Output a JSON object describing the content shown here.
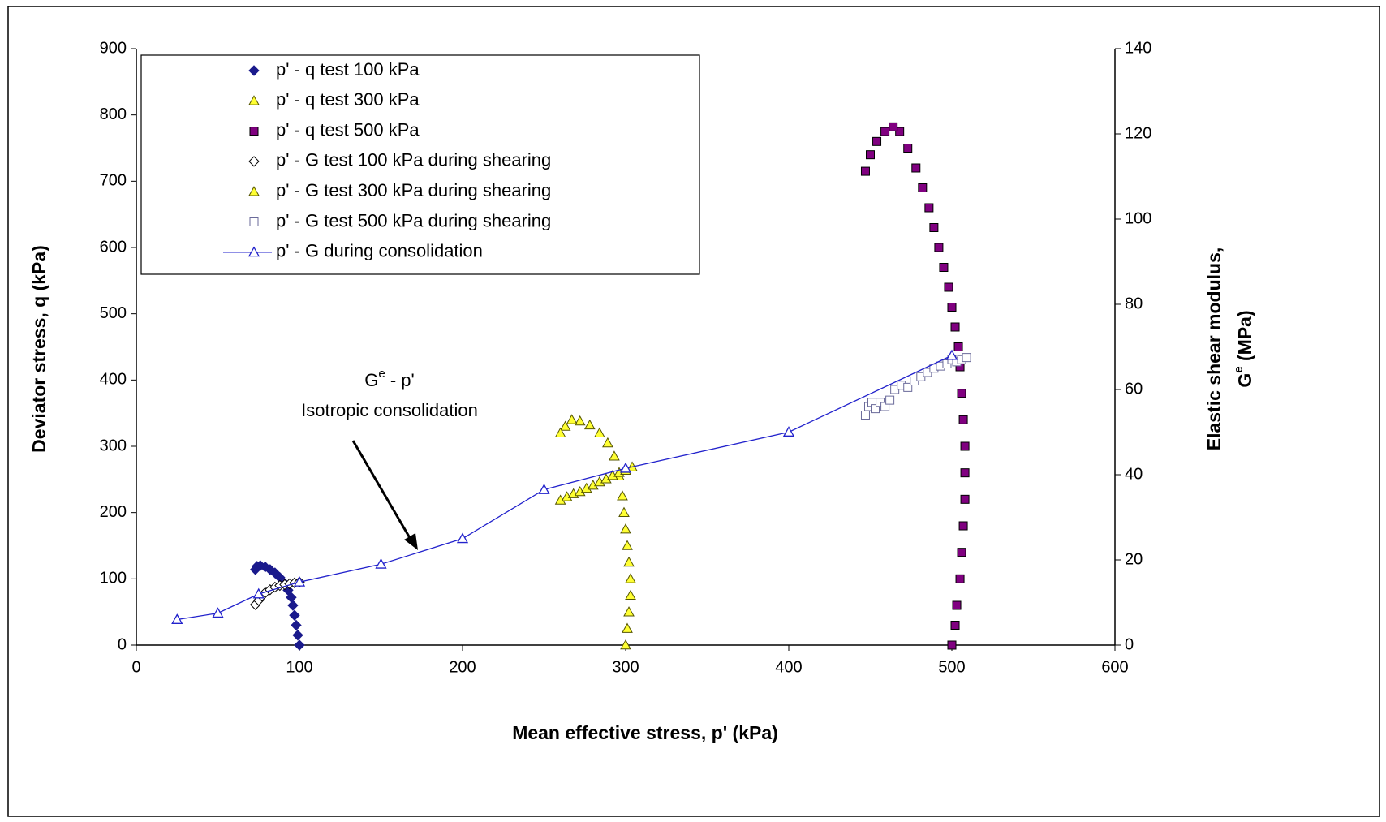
{
  "chart_data": {
    "type": "scatter",
    "x_label": "Mean effective stress, p' (kPa)",
    "y_label": "Deviator stress, q (kPa)",
    "y2_label": [
      "Elastic shear modulus,",
      [
        "G",
        "e",
        " (MPa)"
      ]
    ],
    "annotation": [
      [
        "G",
        "e",
        " - p'"
      ],
      "Isotropic consolidation"
    ],
    "xlim": [
      0,
      600
    ],
    "xticks": [
      0,
      100,
      200,
      300,
      400,
      500,
      600
    ],
    "ylim": [
      0,
      900
    ],
    "yticks": [
      0,
      100,
      200,
      300,
      400,
      500,
      600,
      700,
      800,
      900
    ],
    "y2lim": [
      0,
      140
    ],
    "y2ticks": [
      0,
      20,
      40,
      60,
      80,
      100,
      120,
      140
    ],
    "series": [
      {
        "name": "p' - q test 100 kPa",
        "color": "#1a1a8c",
        "edge": "#1a1a8c",
        "marker": "diamond",
        "x": [
          100,
          99,
          98,
          97,
          96,
          95,
          93,
          91,
          88,
          85,
          82,
          79,
          76,
          74,
          73
        ],
        "values": [
          0,
          15,
          30,
          45,
          60,
          72,
          83,
          93,
          102,
          109,
          114,
          118,
          120,
          119,
          114
        ]
      },
      {
        "name": "p' - q  test 300 kPa",
        "color": "#ffff33",
        "edge": "#555500",
        "marker": "triangle",
        "x": [
          300,
          301,
          302,
          303,
          303,
          302,
          301,
          300,
          299,
          298,
          296,
          293,
          289,
          284,
          278,
          272,
          267,
          263,
          260
        ],
        "values": [
          0,
          25,
          50,
          75,
          100,
          125,
          150,
          175,
          200,
          225,
          255,
          285,
          305,
          320,
          332,
          338,
          340,
          330,
          320
        ]
      },
      {
        "name": "p' - q test 500 kPa",
        "color": "#800080",
        "edge": "#000000",
        "marker": "square",
        "x": [
          500,
          502,
          503,
          505,
          506,
          507,
          508,
          508,
          508,
          507,
          506,
          505,
          504,
          502,
          500,
          498,
          495,
          492,
          489,
          486,
          482,
          478,
          473,
          468,
          464,
          459,
          454,
          450,
          447
        ],
        "values": [
          0,
          30,
          60,
          100,
          140,
          180,
          220,
          260,
          300,
          340,
          380,
          420,
          450,
          480,
          510,
          540,
          570,
          600,
          630,
          660,
          690,
          720,
          750,
          775,
          782,
          775,
          760,
          740,
          715
        ]
      },
      {
        "name": "p' - G test 100 kPa during shearing",
        "color": "#ffffff",
        "edge": "#000000",
        "marker": "diamond",
        "axis": "y2",
        "x": [
          73,
          75,
          77,
          79,
          82,
          85,
          88,
          91,
          94,
          97,
          100
        ],
        "values": [
          9.5,
          10.5,
          11.5,
          12.3,
          13,
          13.6,
          14,
          14.2,
          14.4,
          14.6,
          14.8
        ]
      },
      {
        "name": "p' - G test 300 kPa during shearing",
        "color": "#ffff33",
        "edge": "#555500",
        "marker": "triangle",
        "axis": "y2",
        "x": [
          260,
          264,
          268,
          272,
          276,
          280,
          284,
          288,
          292,
          296,
          300,
          304
        ],
        "values": [
          34,
          34.8,
          35.5,
          36,
          36.8,
          37.5,
          38.3,
          39,
          39.8,
          40.5,
          41,
          41.8
        ]
      },
      {
        "name": "p' - G test 500 kPa during shearing",
        "color": "#ffffff",
        "edge": "#6a6a9a",
        "marker": "square",
        "axis": "y2",
        "x": [
          447,
          449,
          451,
          453,
          456,
          459,
          462,
          465,
          469,
          473,
          477,
          481,
          485,
          489,
          493,
          497,
          500,
          503,
          506,
          509
        ],
        "values": [
          54,
          56,
          57,
          55.5,
          57,
          56,
          57.5,
          60,
          61,
          60.5,
          62,
          63,
          64,
          65,
          65.5,
          66,
          67,
          66.5,
          67,
          67.5
        ]
      },
      {
        "name": "p' - G during consolidation",
        "color": "#2222cc",
        "edge": "#2222cc",
        "marker": "open-triangle",
        "line": true,
        "axis": "y2",
        "x": [
          25,
          50,
          75,
          100,
          150,
          200,
          250,
          300,
          400,
          500
        ],
        "values": [
          6,
          7.5,
          12,
          14.8,
          19,
          25,
          36.5,
          41.5,
          50,
          68
        ]
      }
    ]
  }
}
